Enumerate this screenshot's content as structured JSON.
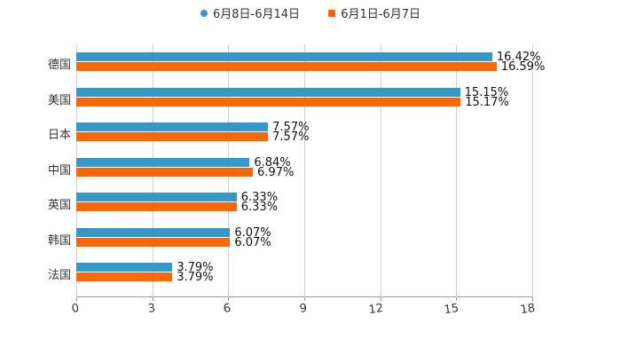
{
  "legend": [
    {
      "label": "6月8日-6月14日",
      "color": "#3399cc",
      "shape": "circle"
    },
    {
      "label": "6月1日-6月7日",
      "color": "#ff6600",
      "shape": "square"
    }
  ],
  "chart_data": {
    "type": "bar",
    "orientation": "horizontal",
    "title": "",
    "xlabel": "",
    "ylabel": "",
    "xlim": [
      0,
      18
    ],
    "xticks": [
      0,
      3,
      6,
      9,
      12,
      15,
      18
    ],
    "grid": true,
    "legend_position": "top",
    "categories": [
      "德国",
      "美国",
      "日本",
      "中国",
      "英国",
      "韩国",
      "法国"
    ],
    "series": [
      {
        "name": "6月8日-6月14日",
        "color": "#3399cc",
        "values": [
          16.42,
          15.15,
          7.57,
          6.84,
          6.33,
          6.07,
          3.79
        ],
        "labels": [
          "16.42%",
          "15.15%",
          "7.57%",
          "6.84%",
          "6.33%",
          "6.07%",
          "3.79%"
        ]
      },
      {
        "name": "6月1日-6月7日",
        "color": "#ff6600",
        "values": [
          16.59,
          15.17,
          7.57,
          6.97,
          6.33,
          6.07,
          3.79
        ],
        "labels": [
          "16.59%",
          "15.17%",
          "7.57%",
          "6.97%",
          "6.33%",
          "6.07%",
          "3.79%"
        ]
      }
    ]
  }
}
